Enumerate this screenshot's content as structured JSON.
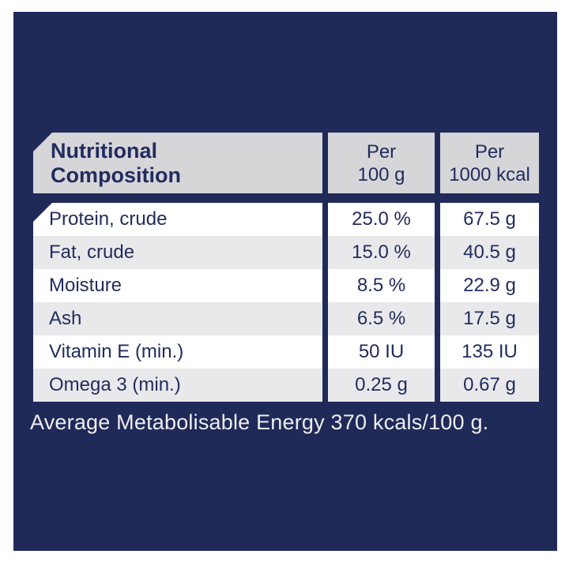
{
  "colors": {
    "page_background": "#ffffff",
    "panel_navy": "#202a59",
    "header_cell_gray": "#d6d6d9",
    "row_alt_gray": "#e9e9ec",
    "row_white": "#ffffff",
    "text_navy": "#222c5e",
    "footer_text": "#efeef1"
  },
  "table": {
    "title": "Nutritional\nComposition",
    "column_headers": {
      "per_100g": "Per\n100 g",
      "per_1000kcal": "Per\n1000 kcal"
    },
    "rows": [
      {
        "label": "Protein, crude",
        "per_100g": "25.0 %",
        "per_1000kcal": "67.5 g"
      },
      {
        "label": "Fat, crude",
        "per_100g": "15.0 %",
        "per_1000kcal": "40.5 g"
      },
      {
        "label": "Moisture",
        "per_100g": "8.5 %",
        "per_1000kcal": "22.9 g"
      },
      {
        "label": "Ash",
        "per_100g": "6.5 %",
        "per_1000kcal": "17.5 g"
      },
      {
        "label": "Vitamin E (min.)",
        "per_100g": "50 IU",
        "per_1000kcal": "135 IU"
      },
      {
        "label": "Omega 3 (min.)",
        "per_100g": "0.25 g",
        "per_1000kcal": "0.67 g"
      }
    ]
  },
  "footer": {
    "text": "Average Metabolisable Energy 370 kcals/100 g."
  }
}
